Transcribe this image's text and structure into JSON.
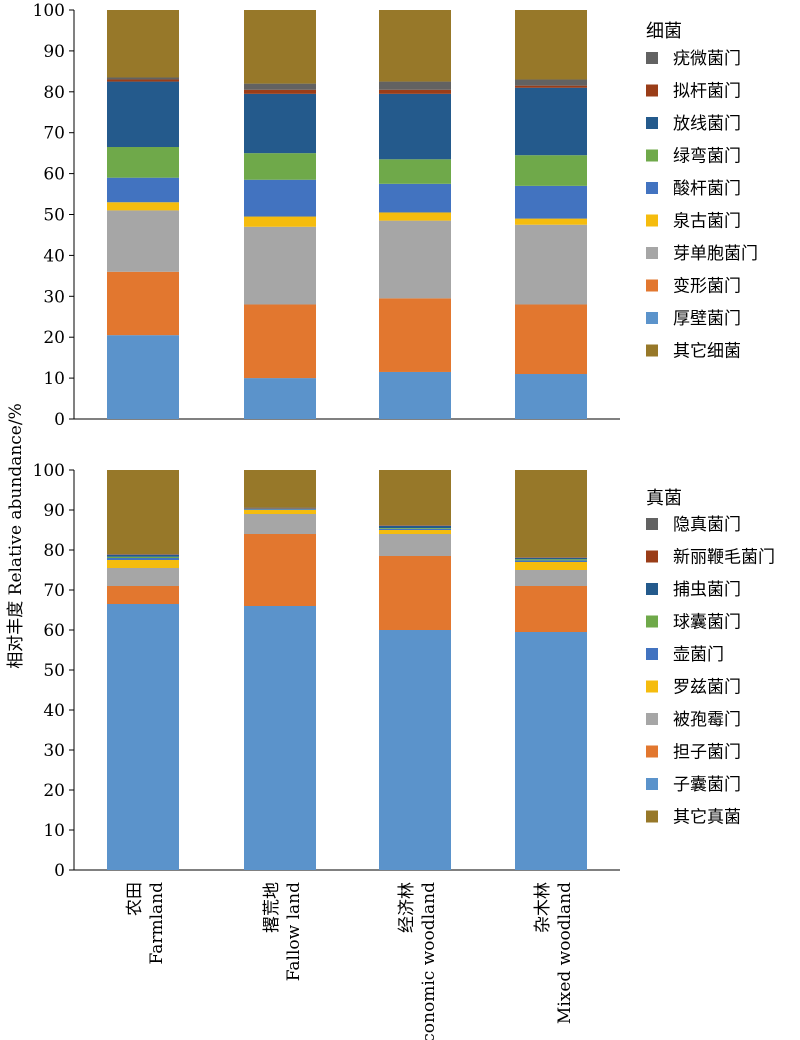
{
  "ylabel": "相对丰度 Relative abundance/%",
  "colors": {
    "gray": "#626262",
    "darkred": "#9a3d18",
    "navy": "#245a8c",
    "green": "#6fa94a",
    "blue": "#4273c0",
    "yellow": "#f5bc0e",
    "lightgray": "#a6a6a6",
    "orange": "#e2772f",
    "lightblue": "#5b93cb",
    "olive": "#977829"
  },
  "chart_data": [
    {
      "type": "bar",
      "stacked": true,
      "legend_title": "细菌",
      "categories": [
        {
          "cn": "农田",
          "en": "Farmland"
        },
        {
          "cn": "撂荒地",
          "en": "Fallow land"
        },
        {
          "cn": "经济林",
          "en": "Economic woodland"
        },
        {
          "cn": "杂木林",
          "en": "Mixed woodland"
        }
      ],
      "ylim": [
        0,
        100
      ],
      "yticks": [
        "0",
        "10",
        "20",
        "30",
        "40",
        "50",
        "60",
        "70",
        "80",
        "90",
        "100"
      ],
      "ylabel": "相对丰度 Relative abundance/%",
      "series": [
        {
          "name": "厚壁菌门",
          "color": "lightblue",
          "values": [
            20.5,
            10.0,
            11.5,
            11.0
          ]
        },
        {
          "name": "变形菌门",
          "color": "orange",
          "values": [
            15.5,
            18.0,
            18.0,
            17.0
          ]
        },
        {
          "name": "芽单胞菌门",
          "color": "lightgray",
          "values": [
            15.0,
            19.0,
            19.0,
            19.5
          ]
        },
        {
          "name": "泉古菌门",
          "color": "yellow",
          "values": [
            2.0,
            2.5,
            2.0,
            1.5
          ]
        },
        {
          "name": "酸杆菌门",
          "color": "blue",
          "values": [
            6.0,
            9.0,
            7.0,
            8.0
          ]
        },
        {
          "name": "绿弯菌门",
          "color": "green",
          "values": [
            7.5,
            6.5,
            6.0,
            7.5
          ]
        },
        {
          "name": "放线菌门",
          "color": "navy",
          "values": [
            16.0,
            14.5,
            16.0,
            16.5
          ]
        },
        {
          "name": "拟杆菌门",
          "color": "darkred",
          "values": [
            0.5,
            1.0,
            1.0,
            0.5
          ]
        },
        {
          "name": "疣微菌门",
          "color": "gray",
          "values": [
            0.5,
            1.5,
            2.0,
            1.5
          ]
        },
        {
          "name": "其它细菌",
          "color": "olive",
          "values": [
            16.5,
            18.0,
            17.5,
            17.0
          ]
        }
      ],
      "legend_order": [
        "疣微菌门",
        "拟杆菌门",
        "放线菌门",
        "绿弯菌门",
        "酸杆菌门",
        "泉古菌门",
        "芽单胞菌门",
        "变形菌门",
        "厚壁菌门",
        "其它细菌"
      ]
    },
    {
      "type": "bar",
      "stacked": true,
      "legend_title": "真菌",
      "categories": [
        {
          "cn": "农田",
          "en": "Farmland"
        },
        {
          "cn": "撂荒地",
          "en": "Fallow land"
        },
        {
          "cn": "经济林",
          "en": "Economic woodland"
        },
        {
          "cn": "杂木林",
          "en": "Mixed woodland"
        }
      ],
      "ylim": [
        0,
        100
      ],
      "yticks": [
        "0",
        "10",
        "20",
        "30",
        "40",
        "50",
        "60",
        "70",
        "80",
        "90",
        "100"
      ],
      "ylabel": "相对丰度 Relative abundance/%",
      "series": [
        {
          "name": "子囊菌门",
          "color": "lightblue",
          "values": [
            66.5,
            66.0,
            60.0,
            59.5
          ]
        },
        {
          "name": "担子菌门",
          "color": "orange",
          "values": [
            4.5,
            18.0,
            18.5,
            11.5
          ]
        },
        {
          "name": "被孢霉门",
          "color": "lightgray",
          "values": [
            4.5,
            5.0,
            5.5,
            4.0
          ]
        },
        {
          "name": "罗兹菌门",
          "color": "yellow",
          "values": [
            2.0,
            1.0,
            1.0,
            2.0
          ]
        },
        {
          "name": "壶菌门",
          "color": "blue",
          "values": [
            0.5,
            0.2,
            0.3,
            0.4
          ]
        },
        {
          "name": "球囊菌门",
          "color": "green",
          "values": [
            0.3,
            0.1,
            0.2,
            0.3
          ]
        },
        {
          "name": "捕虫菌门",
          "color": "navy",
          "values": [
            0.5,
            0.1,
            0.5,
            0.3
          ]
        },
        {
          "name": "新丽鞭毛菌门",
          "color": "darkred",
          "values": [
            0.1,
            0.1,
            0.1,
            0.1
          ]
        },
        {
          "name": "隐真菌门",
          "color": "gray",
          "values": [
            0.1,
            0.1,
            0.1,
            0.1
          ]
        },
        {
          "name": "其它真菌",
          "color": "olive",
          "values": [
            21.0,
            9.4,
            13.8,
            21.8
          ]
        }
      ],
      "legend_order": [
        "隐真菌门",
        "新丽鞭毛菌门",
        "捕虫菌门",
        "球囊菌门",
        "壶菌门",
        "罗兹菌门",
        "被孢霉门",
        "担子菌门",
        "子囊菌门",
        "其它真菌"
      ]
    }
  ]
}
